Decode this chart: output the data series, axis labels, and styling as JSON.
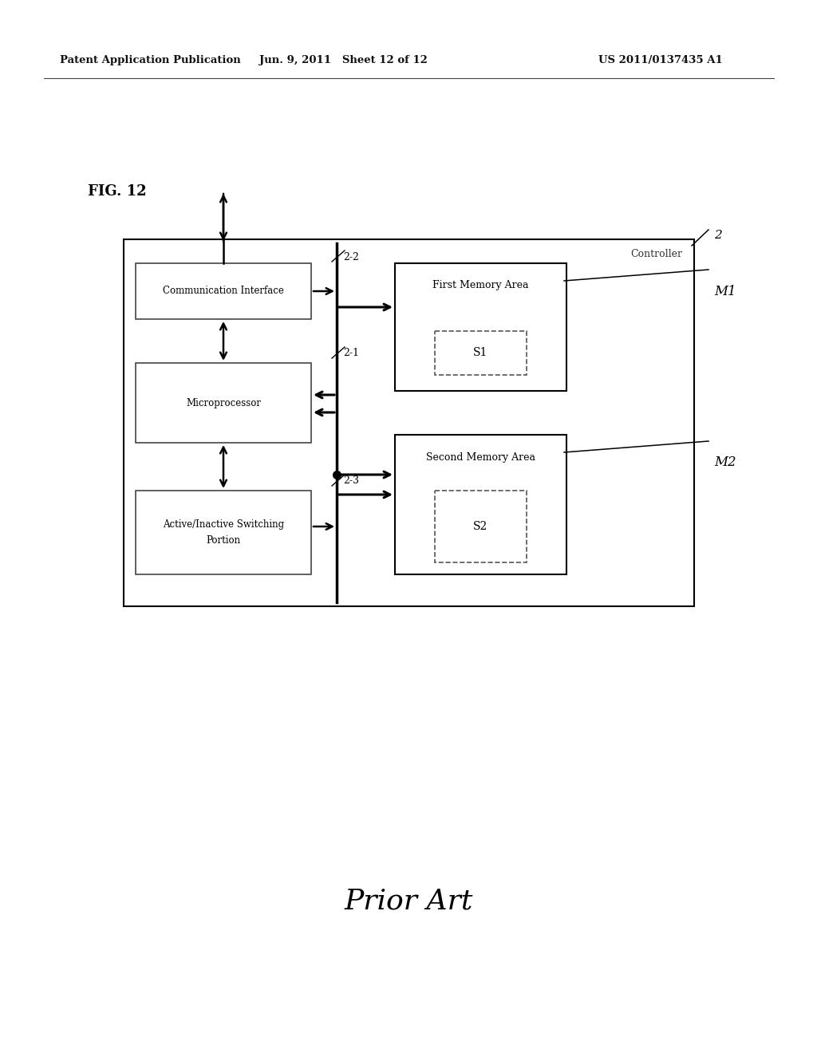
{
  "bg_color": "#ffffff",
  "header_left": "Patent Application Publication",
  "header_mid": "Jun. 9, 2011   Sheet 12 of 12",
  "header_right": "US 2011/0137435 A1",
  "fig_label": "FIG. 12",
  "footer_text": "Prior Art",
  "controller_label": "2",
  "controller_text": "Controller",
  "bus_label_22": "2-2",
  "bus_label_21": "2-1",
  "bus_label_23": "2-3",
  "m1_label": "M1",
  "m2_label": "M2",
  "comm_text": "Communication Interface",
  "micro_text": "Microprocessor",
  "switch_text1": "Active/Inactive Switching",
  "switch_text2": "Portion",
  "mem1_text": "First Memory Area",
  "mem2_text": "Second Memory Area",
  "s1_text": "S1",
  "s2_text": "S2"
}
